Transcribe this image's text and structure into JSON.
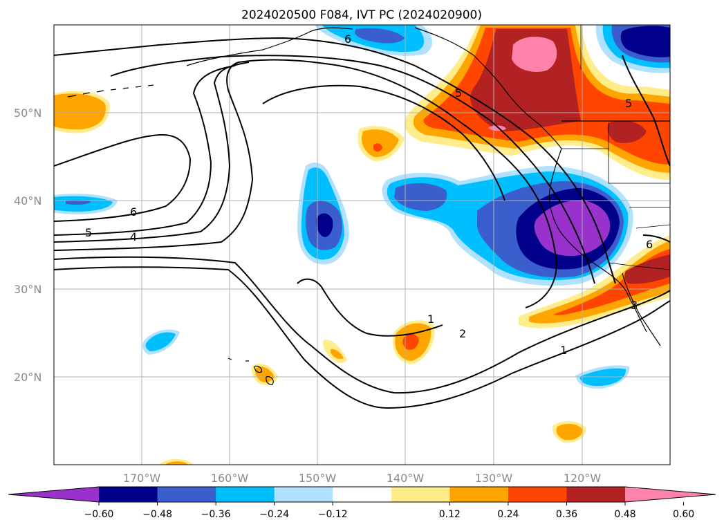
{
  "title": "2024020500 F084, IVT PC (2024020900)",
  "lat_labels": [
    "50°N",
    "40°N",
    "30°N",
    "20°N"
  ],
  "lon_labels": [
    "170°W",
    "160°W",
    "150°W",
    "140°W",
    "130°W",
    "120°W"
  ],
  "colorbar": {
    "ticks": [
      "−0.60",
      "−0.48",
      "−0.36",
      "−0.24",
      "−0.12",
      "0.12",
      "0.24",
      "0.36",
      "0.48",
      "0.60"
    ],
    "colors": [
      "#9932cc",
      "#00008b",
      "#3a5fcd",
      "#00bfff",
      "#b0e2ff",
      "#ffffff",
      "#ffec8b",
      "#ffa500",
      "#ff4500",
      "#b22222",
      "#ff82ab"
    ]
  },
  "contour_labels": [
    "6",
    "5",
    "4",
    "6",
    "5",
    "1",
    "2",
    "1",
    "6",
    "5",
    "3"
  ],
  "colors": {
    "gridline": "#b0b0b0",
    "contour": "#000000",
    "coast": "#000000"
  }
}
